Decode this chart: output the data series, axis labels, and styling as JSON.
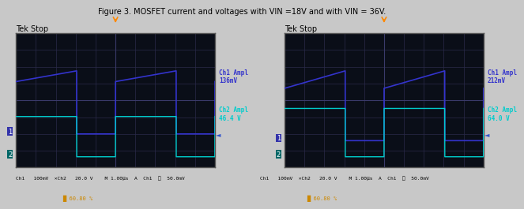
{
  "bg_color": "#1a1a2e",
  "screen_bg": "#0d1117",
  "grid_color": "#3a3a5c",
  "panels": [
    {
      "title": "Tek Stop",
      "ch1_ampl_label": "Ch1 Ampl\n136mV",
      "ch2_ampl_label": "Ch2 Ampl\n46.4 V",
      "bottom_label": "Ch1   100mV  ×Ch2   20.0 V    M 1.00μs  A  Ch1  ∯  50.0mV",
      "footer": "█ 60.80 %",
      "ch1_color": "#3333cc",
      "ch2_color": "#00cccc",
      "trigger_color": "#ff8800",
      "duty": 0.61,
      "period": 2.0,
      "ch1_high": 0.72,
      "ch1_low": 0.25,
      "ch1_ramp_slope": 0.08,
      "ch2_high": 0.38,
      "ch2_low": 0.08
    },
    {
      "title": "Tek Stop",
      "ch1_ampl_label": "Ch1 Ampl\n212mV",
      "ch2_ampl_label": "Ch2 Ampl\n64.0 V",
      "bottom_label": "Ch1   100mV  ×Ch2   20.0 V    M 1.00μs  A  Ch1  ∯  50.0mV",
      "footer": "█ 60.80 %",
      "ch1_color": "#3333cc",
      "ch2_color": "#00cccc",
      "trigger_color": "#ff8800",
      "duty": 0.61,
      "period": 2.0,
      "ch1_high": 0.72,
      "ch1_low": 0.2,
      "ch1_ramp_slope": 0.13,
      "ch2_high": 0.44,
      "ch2_low": 0.08
    }
  ]
}
